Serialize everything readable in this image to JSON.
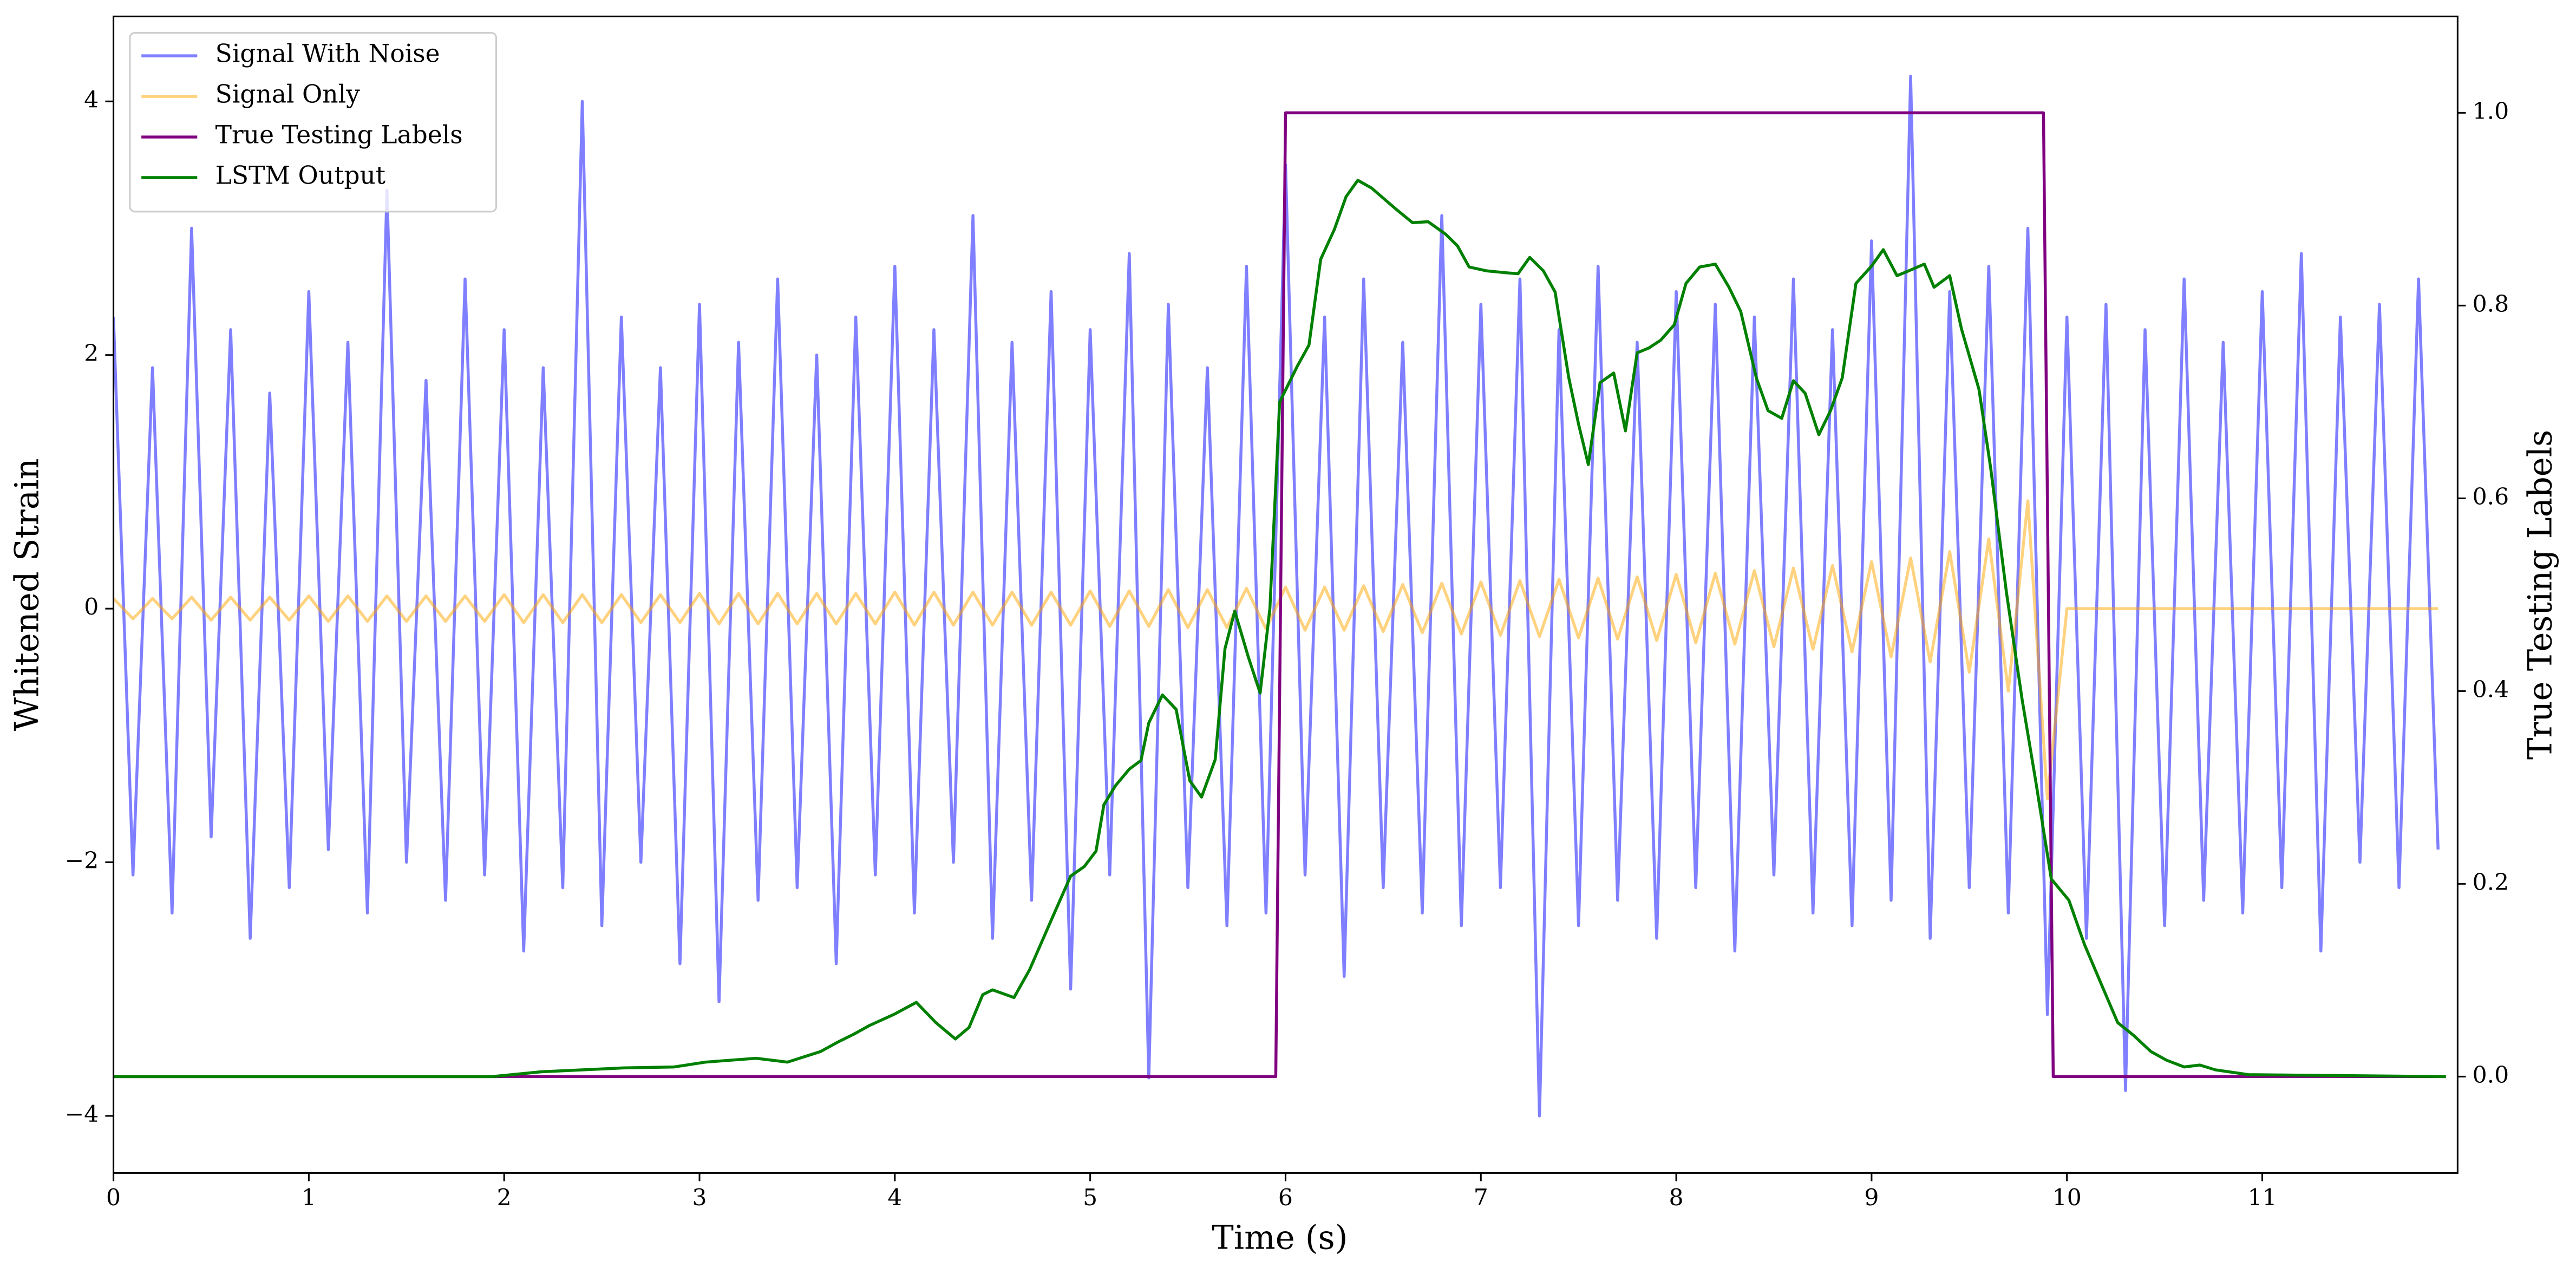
{
  "chart_data": {
    "type": "line",
    "xlabel": "Time (s)",
    "ylabel": "Whitened Strain",
    "y2label": "True Testing Labels",
    "xlim": [
      0,
      12
    ],
    "ylim": [
      -4.45,
      4.67
    ],
    "y2lim": [
      -0.1,
      1.1
    ],
    "xticks": [
      0,
      1,
      2,
      3,
      4,
      5,
      6,
      7,
      8,
      9,
      10,
      11
    ],
    "yticks": [
      {
        "value": -4,
        "label": "−4"
      },
      {
        "value": -2,
        "label": "−2"
      },
      0,
      2,
      4
    ],
    "y2ticks": [
      {
        "value": 0,
        "label": "0.0"
      },
      0.2,
      0.4,
      0.6,
      0.8,
      {
        "value": 1,
        "label": "1.0"
      }
    ],
    "legend": "upper left",
    "x": [
      0,
      0.1,
      0.2,
      0.3,
      0.4,
      0.5,
      0.6,
      0.7,
      0.8,
      0.9,
      1,
      1.1,
      1.2,
      1.3,
      1.4,
      1.5,
      1.6,
      1.7,
      1.8,
      1.9,
      2,
      2.1,
      2.2,
      2.3,
      2.4,
      2.5,
      2.6,
      2.7,
      2.8,
      2.9,
      3,
      3.1,
      3.2,
      3.3,
      3.4,
      3.5,
      3.6,
      3.7,
      3.8,
      3.9,
      4,
      4.1,
      4.2,
      4.3,
      4.4,
      4.5,
      4.6,
      4.7,
      4.8,
      4.9,
      5,
      5.1,
      5.2,
      5.3,
      5.4,
      5.5,
      5.6,
      5.7,
      5.8,
      5.9,
      6,
      6.1,
      6.2,
      6.3,
      6.4,
      6.5,
      6.6,
      6.7,
      6.8,
      6.9,
      7,
      7.1,
      7.2,
      7.3,
      7.4,
      7.5,
      7.6,
      7.7,
      7.8,
      7.9,
      8,
      8.1,
      8.2,
      8.3,
      8.4,
      8.5,
      8.6,
      8.7,
      8.8,
      8.9,
      9,
      9.1,
      9.2,
      9.3,
      9.4,
      9.5,
      9.6,
      9.7,
      9.8,
      9.9,
      10,
      10.1,
      10.2,
      10.3,
      10.4,
      10.5,
      10.6,
      10.7,
      10.8,
      10.9,
      11,
      11.1,
      11.2,
      11.3,
      11.4,
      11.5,
      11.6,
      11.7,
      11.8,
      11.9
    ],
    "series": [
      {
        "name": "Signal With Noise",
        "color": "#0000ff",
        "alpha": 0.5,
        "values": [
          2.3,
          -2.1,
          1.9,
          -2.4,
          3.0,
          -1.8,
          2.2,
          -2.6,
          1.7,
          -2.2,
          2.5,
          -1.9,
          2.1,
          -2.4,
          3.3,
          -2.0,
          1.8,
          -2.3,
          2.6,
          -2.1,
          2.2,
          -2.7,
          1.9,
          -2.2,
          4.0,
          -2.5,
          2.3,
          -2.0,
          1.9,
          -2.8,
          2.4,
          -3.1,
          2.1,
          -2.3,
          2.6,
          -2.2,
          2.0,
          -2.8,
          2.3,
          -2.1,
          2.7,
          -2.4,
          2.2,
          -2.0,
          3.1,
          -2.6,
          2.1,
          -2.3,
          2.5,
          -3.0,
          2.2,
          -2.1,
          2.8,
          -3.7,
          2.4,
          -2.2,
          1.9,
          -2.5,
          2.7,
          -2.4,
          3.5,
          -2.1,
          2.3,
          -2.9,
          2.6,
          -2.2,
          2.1,
          -2.4,
          3.1,
          -2.5,
          2.4,
          -2.2,
          2.6,
          -4.0,
          2.2,
          -2.5,
          2.7,
          -2.3,
          2.1,
          -2.6,
          2.5,
          -2.2,
          2.4,
          -2.7,
          2.3,
          -2.1,
          2.6,
          -2.4,
          2.2,
          -2.5,
          2.9,
          -2.3,
          4.2,
          -2.6,
          2.5,
          -2.2,
          2.7,
          -2.4,
          3.0,
          -3.2,
          2.3,
          -2.6,
          2.4,
          -3.8,
          2.2,
          -2.5,
          2.6,
          -2.3,
          2.1,
          -2.4,
          2.5,
          -2.2,
          2.8,
          -2.7,
          2.3,
          -2.0,
          2.4,
          -2.2,
          2.6,
          -1.9
        ]
      },
      {
        "name": "Signal Only",
        "color": "#ffa500",
        "alpha": 0.5,
        "values": [
          0.08,
          -0.08,
          0.08,
          -0.08,
          0.09,
          -0.09,
          0.09,
          -0.09,
          0.09,
          -0.09,
          0.1,
          -0.1,
          0.1,
          -0.1,
          0.1,
          -0.1,
          0.1,
          -0.1,
          0.1,
          -0.1,
          0.11,
          -0.11,
          0.11,
          -0.11,
          0.11,
          -0.11,
          0.11,
          -0.11,
          0.11,
          -0.11,
          0.12,
          -0.12,
          0.12,
          -0.12,
          0.12,
          -0.12,
          0.12,
          -0.12,
          0.12,
          -0.12,
          0.13,
          -0.13,
          0.13,
          -0.13,
          0.13,
          -0.13,
          0.13,
          -0.13,
          0.13,
          -0.13,
          0.14,
          -0.14,
          0.14,
          -0.14,
          0.15,
          -0.15,
          0.15,
          -0.15,
          0.16,
          -0.16,
          0.17,
          -0.17,
          0.17,
          -0.17,
          0.18,
          -0.18,
          0.19,
          -0.19,
          0.2,
          -0.2,
          0.21,
          -0.21,
          0.22,
          -0.22,
          0.23,
          -0.23,
          0.24,
          -0.24,
          0.25,
          -0.25,
          0.27,
          -0.27,
          0.28,
          -0.28,
          0.3,
          -0.3,
          0.32,
          -0.32,
          0.34,
          -0.34,
          0.37,
          -0.38,
          0.4,
          -0.42,
          0.45,
          -0.5,
          0.55,
          -0.65,
          0.85,
          -1.5,
          0,
          0,
          0,
          0,
          0,
          0,
          0,
          0,
          0,
          0,
          0,
          0,
          0,
          0,
          0,
          0,
          0,
          0,
          0,
          0
        ]
      },
      {
        "name": "True Testing Labels",
        "color": "#800080",
        "alpha": 1,
        "axis": "y2",
        "x": [
          0,
          5.95,
          6.0,
          9.88,
          9.93,
          11.94
        ],
        "values": [
          0,
          0,
          1,
          1,
          0,
          0
        ]
      },
      {
        "name": "LSTM Output",
        "color": "#008000",
        "alpha": 1,
        "axis": "y2",
        "x": [
          0,
          1.94,
          2.19,
          2.61,
          2.87,
          3.03,
          3.29,
          3.45,
          3.62,
          3.71,
          3.79,
          3.87,
          4.0,
          4.11,
          4.21,
          4.31,
          4.38,
          4.45,
          4.5,
          4.61,
          4.69,
          4.8,
          4.9,
          4.97,
          5.03,
          5.07,
          5.13,
          5.2,
          5.26,
          5.3,
          5.37,
          5.44,
          5.51,
          5.57,
          5.64,
          5.69,
          5.74,
          5.81,
          5.87,
          5.92,
          5.97,
          6.06,
          6.12,
          6.18,
          6.25,
          6.31,
          6.37,
          6.44,
          6.56,
          6.65,
          6.73,
          6.82,
          6.88,
          6.94,
          7.03,
          7.13,
          7.19,
          7.25,
          7.32,
          7.38,
          7.45,
          7.5,
          7.55,
          7.61,
          7.68,
          7.74,
          7.8,
          7.86,
          7.92,
          7.99,
          8.05,
          8.12,
          8.2,
          8.27,
          8.33,
          8.41,
          8.47,
          8.54,
          8.6,
          8.66,
          8.73,
          8.79,
          8.85,
          8.92,
          9.0,
          9.06,
          9.13,
          9.19,
          9.27,
          9.32,
          9.4,
          9.46,
          9.55,
          9.61,
          9.69,
          9.77,
          9.84,
          9.92,
          10.01,
          10.09,
          10.18,
          10.26,
          10.34,
          10.43,
          10.51,
          10.6,
          10.68,
          10.76,
          10.93,
          11.94
        ],
        "values": [
          0,
          0,
          0.005,
          0.009,
          0.01,
          0.015,
          0.019,
          0.015,
          0.026,
          0.036,
          0.044,
          0.053,
          0.065,
          0.077,
          0.056,
          0.039,
          0.051,
          0.085,
          0.09,
          0.082,
          0.111,
          0.162,
          0.208,
          0.218,
          0.234,
          0.282,
          0.302,
          0.319,
          0.328,
          0.367,
          0.396,
          0.381,
          0.307,
          0.29,
          0.329,
          0.444,
          0.483,
          0.435,
          0.398,
          0.486,
          0.7,
          0.737,
          0.759,
          0.848,
          0.879,
          0.913,
          0.93,
          0.922,
          0.901,
          0.886,
          0.887,
          0.874,
          0.862,
          0.84,
          0.836,
          0.834,
          0.833,
          0.85,
          0.836,
          0.814,
          0.725,
          0.677,
          0.635,
          0.72,
          0.73,
          0.67,
          0.751,
          0.756,
          0.764,
          0.78,
          0.823,
          0.84,
          0.843,
          0.819,
          0.794,
          0.725,
          0.691,
          0.683,
          0.722,
          0.709,
          0.666,
          0.691,
          0.725,
          0.823,
          0.841,
          0.858,
          0.831,
          0.836,
          0.843,
          0.819,
          0.831,
          0.776,
          0.713,
          0.631,
          0.503,
          0.392,
          0.307,
          0.205,
          0.183,
          0.137,
          0.094,
          0.056,
          0.043,
          0.026,
          0.017,
          0.01,
          0.012,
          0.007,
          0.002,
          0
        ]
      }
    ]
  }
}
